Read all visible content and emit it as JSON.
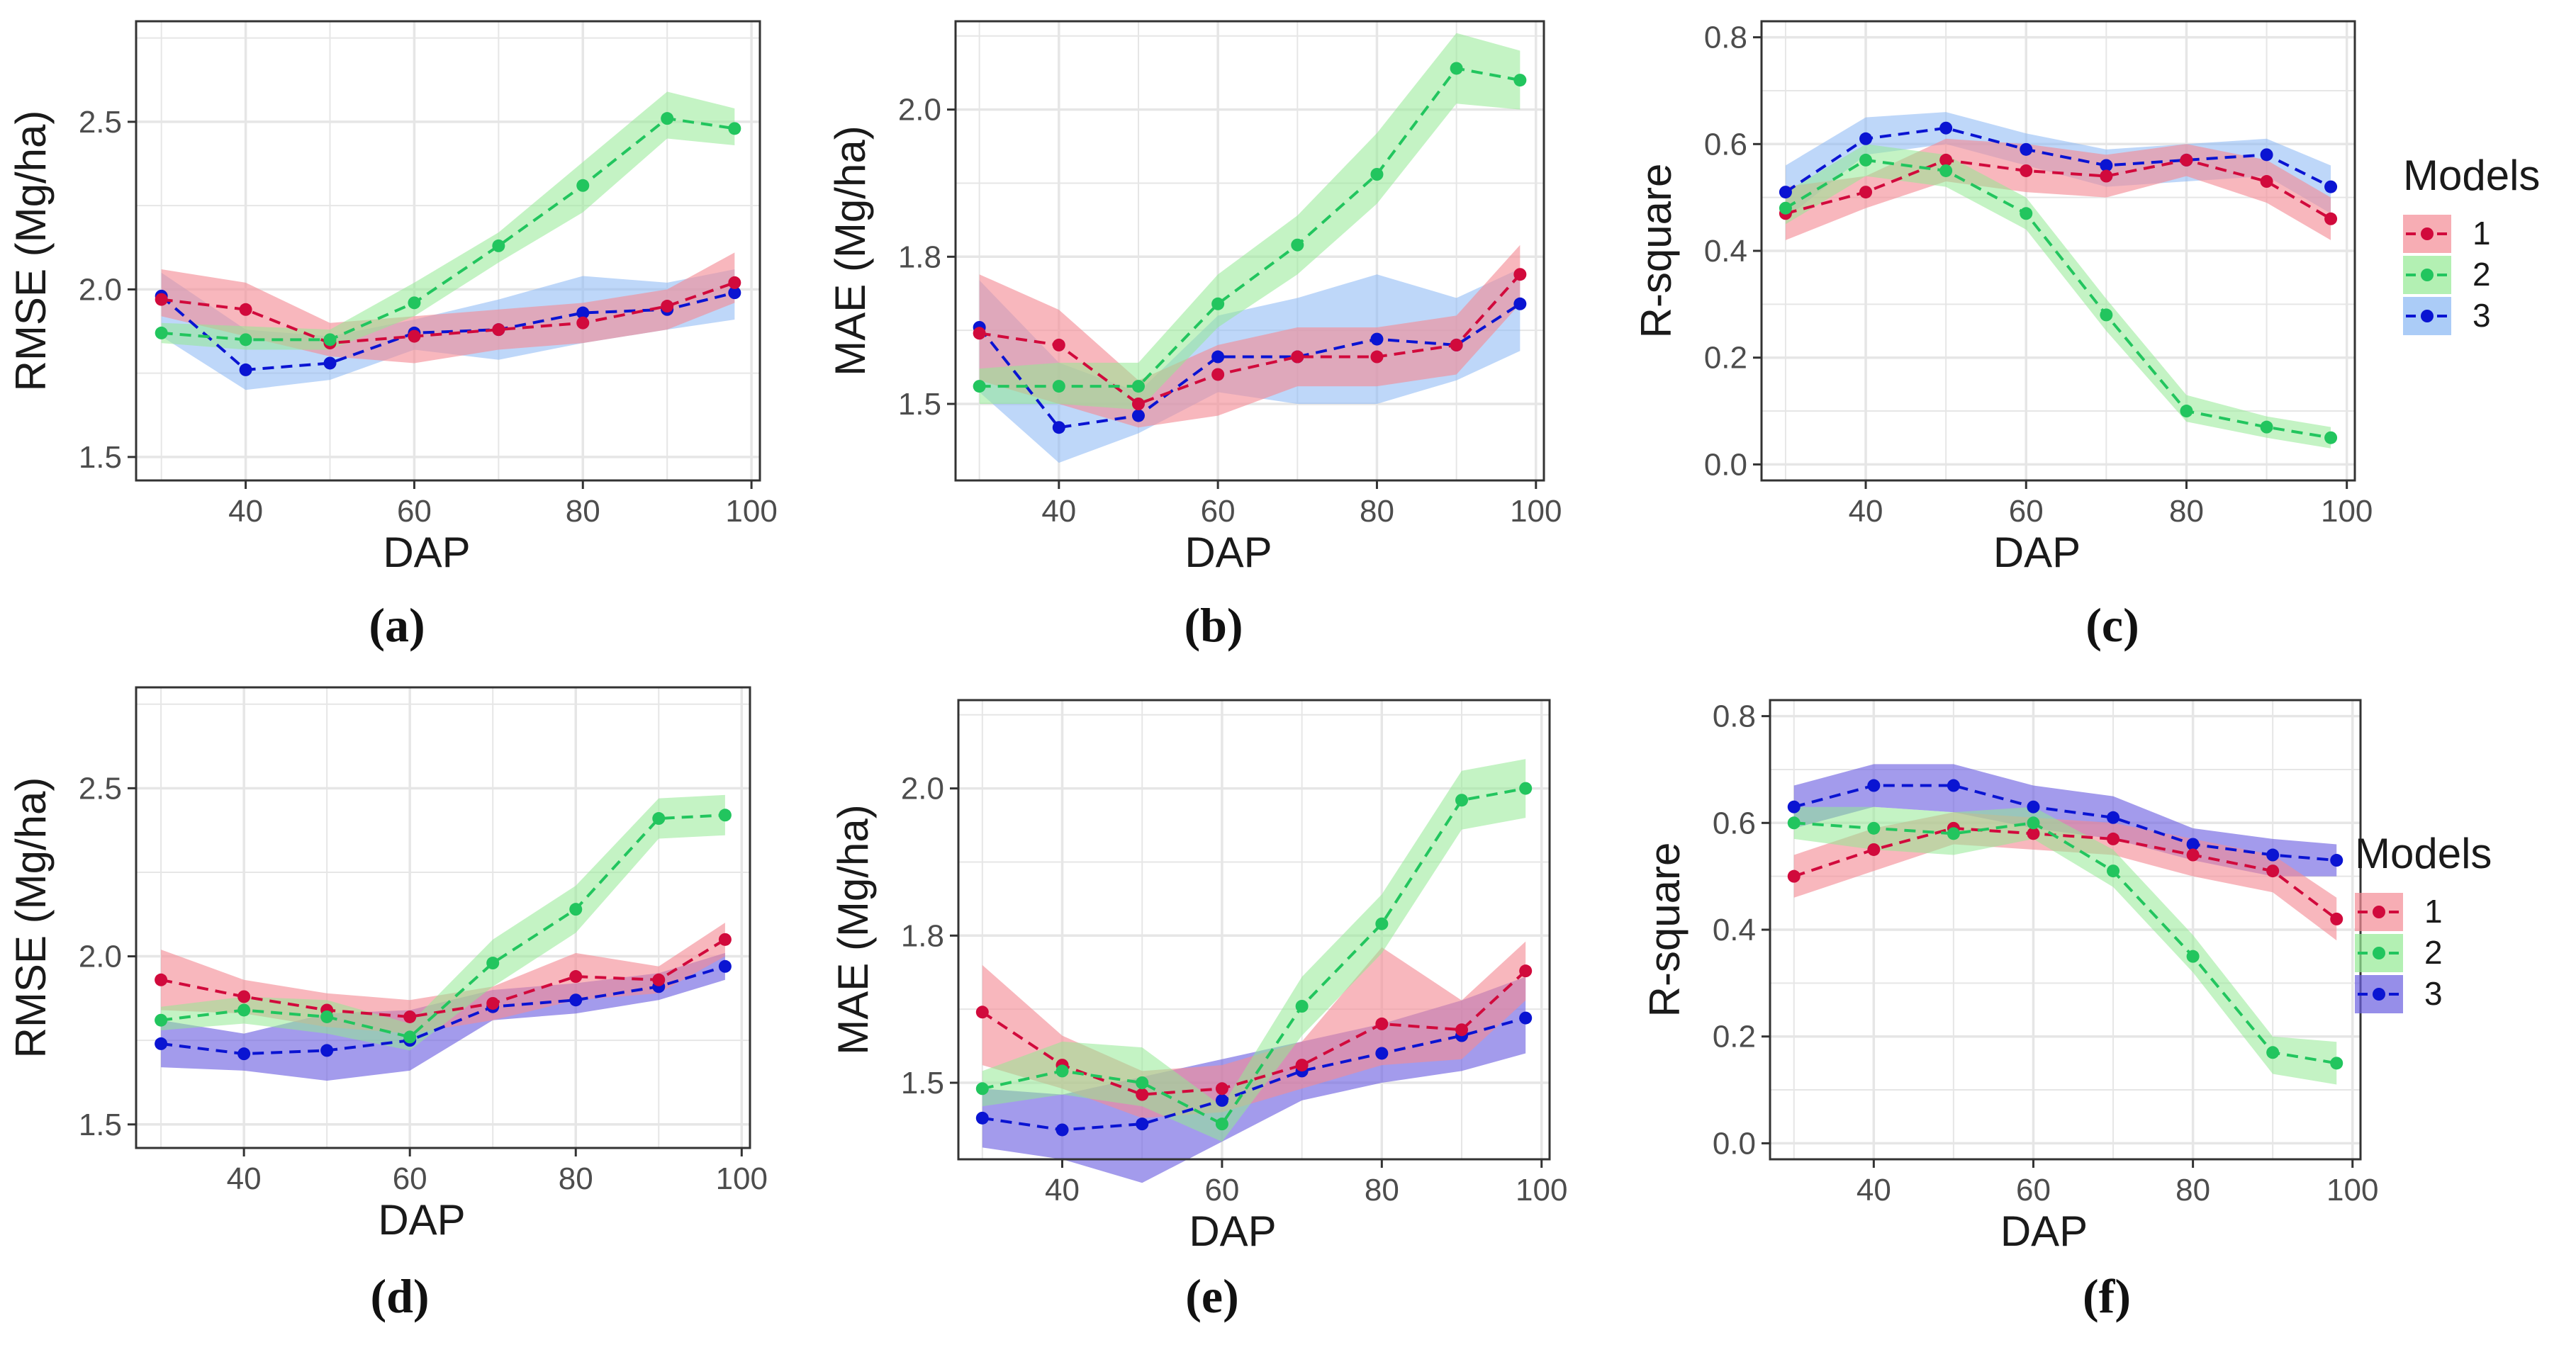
{
  "colors": {
    "model_1": "#d10a3c",
    "model_2": "#22c55e",
    "model_3": "#0a14d2",
    "band_1": "#f48a94",
    "band_2": "#93ea93",
    "band_3_top": "#88b6f4",
    "band_3_bottom": "#6a5ee0",
    "grid": "#e6e6e6",
    "axis": "#333333"
  },
  "legend": {
    "title": "Models",
    "items": [
      "1",
      "2",
      "3"
    ]
  },
  "chart_data": [
    {
      "id": "a",
      "panel_label": "(a)",
      "type": "line",
      "xlabel": "DAP",
      "ylabel": "RMSE (Mg/ha)",
      "xlim": [
        27,
        101
      ],
      "ylim": [
        1.43,
        2.8
      ],
      "xticks": [
        40,
        60,
        80,
        100
      ],
      "yticks": [
        1.5,
        2.0,
        2.5
      ],
      "xtick_labels": [
        "40",
        "60",
        "80",
        "100"
      ],
      "ytick_labels": [
        "1.5",
        "2.0",
        "2.5"
      ],
      "x": [
        30,
        40,
        50,
        60,
        70,
        80,
        90,
        98
      ],
      "series": [
        {
          "name": "1",
          "values": [
            1.97,
            1.94,
            1.84,
            1.86,
            1.88,
            1.9,
            1.95,
            2.02
          ],
          "lower": [
            1.92,
            1.86,
            1.8,
            1.78,
            1.82,
            1.84,
            1.88,
            1.96
          ],
          "upper": [
            2.06,
            2.02,
            1.9,
            1.92,
            1.94,
            1.96,
            2.0,
            2.11
          ]
        },
        {
          "name": "2",
          "values": [
            1.87,
            1.85,
            1.85,
            1.96,
            2.13,
            2.31,
            2.51,
            2.48
          ],
          "lower": [
            1.84,
            1.82,
            1.82,
            1.92,
            2.08,
            2.23,
            2.45,
            2.43
          ],
          "upper": [
            1.9,
            1.89,
            1.88,
            2.02,
            2.17,
            2.38,
            2.59,
            2.54
          ]
        },
        {
          "name": "3",
          "values": [
            1.98,
            1.76,
            1.78,
            1.87,
            1.88,
            1.93,
            1.94,
            1.99
          ],
          "lower": [
            1.86,
            1.7,
            1.73,
            1.82,
            1.79,
            1.84,
            1.88,
            1.91
          ],
          "upper": [
            2.05,
            1.88,
            1.86,
            1.91,
            1.97,
            2.04,
            2.02,
            2.06
          ]
        }
      ]
    },
    {
      "id": "b",
      "panel_label": "(b)",
      "type": "line",
      "xlabel": "DAP",
      "ylabel": "MAE (Mg/ha)",
      "xlim": [
        27,
        101
      ],
      "ylim": [
        1.37,
        2.15
      ],
      "xticks": [
        40,
        60,
        80,
        100
      ],
      "yticks": [
        1.5,
        1.75,
        2.0
      ],
      "xtick_labels": [
        "40",
        "60",
        "80",
        "100"
      ],
      "ytick_labels": [
        "1.5",
        "1.8",
        "2.0"
      ],
      "x": [
        30,
        40,
        50,
        60,
        70,
        80,
        90,
        98
      ],
      "series": [
        {
          "name": "1",
          "values": [
            1.62,
            1.6,
            1.5,
            1.55,
            1.58,
            1.58,
            1.6,
            1.72
          ],
          "lower": [
            1.54,
            1.5,
            1.46,
            1.48,
            1.53,
            1.53,
            1.55,
            1.67
          ],
          "upper": [
            1.72,
            1.66,
            1.54,
            1.6,
            1.63,
            1.63,
            1.65,
            1.77
          ]
        },
        {
          "name": "2",
          "values": [
            1.53,
            1.53,
            1.53,
            1.67,
            1.77,
            1.89,
            2.07,
            2.05
          ],
          "lower": [
            1.5,
            1.5,
            1.49,
            1.63,
            1.72,
            1.84,
            2.01,
            2.0
          ],
          "upper": [
            1.56,
            1.57,
            1.57,
            1.72,
            1.82,
            1.96,
            2.13,
            2.1
          ]
        },
        {
          "name": "3",
          "values": [
            1.63,
            1.46,
            1.48,
            1.58,
            1.58,
            1.61,
            1.6,
            1.67
          ],
          "lower": [
            1.52,
            1.4,
            1.45,
            1.52,
            1.5,
            1.5,
            1.54,
            1.59
          ],
          "upper": [
            1.71,
            1.57,
            1.52,
            1.65,
            1.68,
            1.72,
            1.68,
            1.73
          ]
        }
      ]
    },
    {
      "id": "c",
      "panel_label": "(c)",
      "type": "line",
      "xlabel": "DAP",
      "ylabel": "R-square",
      "xlim": [
        27,
        101
      ],
      "ylim": [
        -0.03,
        0.83
      ],
      "xticks": [
        40,
        60,
        80,
        100
      ],
      "yticks": [
        0.0,
        0.2,
        0.4,
        0.6,
        0.8
      ],
      "xtick_labels": [
        "40",
        "60",
        "80",
        "100"
      ],
      "ytick_labels": [
        "0.0",
        "0.2",
        "0.4",
        "0.6",
        "0.8"
      ],
      "x": [
        30,
        40,
        50,
        60,
        70,
        80,
        90,
        98
      ],
      "legend_title": "Models",
      "series": [
        {
          "name": "1",
          "values": [
            0.47,
            0.51,
            0.57,
            0.55,
            0.54,
            0.57,
            0.53,
            0.46
          ],
          "lower": [
            0.42,
            0.48,
            0.53,
            0.51,
            0.5,
            0.54,
            0.49,
            0.42
          ],
          "upper": [
            0.52,
            0.54,
            0.61,
            0.6,
            0.58,
            0.6,
            0.57,
            0.5
          ]
        },
        {
          "name": "2",
          "values": [
            0.48,
            0.57,
            0.55,
            0.47,
            0.28,
            0.1,
            0.07,
            0.05
          ],
          "lower": [
            0.45,
            0.54,
            0.52,
            0.44,
            0.25,
            0.08,
            0.05,
            0.03
          ],
          "upper": [
            0.51,
            0.6,
            0.58,
            0.5,
            0.31,
            0.13,
            0.09,
            0.07
          ]
        },
        {
          "name": "3",
          "values": [
            0.51,
            0.61,
            0.63,
            0.59,
            0.56,
            0.57,
            0.58,
            0.52
          ],
          "lower": [
            0.46,
            0.58,
            0.6,
            0.56,
            0.52,
            0.53,
            0.54,
            0.47
          ],
          "upper": [
            0.56,
            0.65,
            0.66,
            0.62,
            0.59,
            0.6,
            0.61,
            0.56
          ]
        }
      ]
    },
    {
      "id": "d",
      "panel_label": "(d)",
      "type": "line",
      "xlabel": "DAP",
      "ylabel": "RMSE (Mg/ha)",
      "xlim": [
        27,
        101
      ],
      "ylim": [
        1.43,
        2.8
      ],
      "xticks": [
        40,
        60,
        80,
        100
      ],
      "yticks": [
        1.5,
        2.0,
        2.5
      ],
      "xtick_labels": [
        "40",
        "60",
        "80",
        "100"
      ],
      "ytick_labels": [
        "1.5",
        "2.0",
        "2.5"
      ],
      "x": [
        30,
        40,
        50,
        60,
        70,
        80,
        90,
        98
      ],
      "series": [
        {
          "name": "1",
          "values": [
            1.93,
            1.88,
            1.84,
            1.82,
            1.86,
            1.94,
            1.93,
            2.05
          ],
          "lower": [
            1.84,
            1.83,
            1.79,
            1.77,
            1.81,
            1.87,
            1.89,
            2.0
          ],
          "upper": [
            2.02,
            1.93,
            1.89,
            1.87,
            1.91,
            2.01,
            1.97,
            2.1
          ]
        },
        {
          "name": "2",
          "values": [
            1.81,
            1.84,
            1.82,
            1.76,
            1.98,
            2.14,
            2.41,
            2.42
          ],
          "lower": [
            1.78,
            1.8,
            1.77,
            1.72,
            1.91,
            2.07,
            2.35,
            2.36
          ],
          "upper": [
            1.85,
            1.88,
            1.87,
            1.8,
            2.05,
            2.21,
            2.47,
            2.48
          ]
        },
        {
          "name": "3",
          "values": [
            1.74,
            1.71,
            1.72,
            1.75,
            1.85,
            1.87,
            1.91,
            1.97
          ],
          "lower": [
            1.67,
            1.66,
            1.63,
            1.66,
            1.81,
            1.83,
            1.87,
            1.93
          ],
          "upper": [
            1.81,
            1.77,
            1.83,
            1.84,
            1.9,
            1.92,
            1.95,
            2.01
          ]
        }
      ]
    },
    {
      "id": "e",
      "panel_label": "(e)",
      "type": "line",
      "xlabel": "DAP",
      "ylabel": "MAE (Mg/ha)",
      "xlim": [
        27,
        101
      ],
      "ylim": [
        1.37,
        2.15
      ],
      "xticks": [
        40,
        60,
        80,
        100
      ],
      "yticks": [
        1.5,
        1.75,
        2.0
      ],
      "xtick_labels": [
        "40",
        "60",
        "80",
        "100"
      ],
      "ytick_labels": [
        "1.5",
        "1.8",
        "2.0"
      ],
      "x": [
        30,
        40,
        50,
        60,
        70,
        80,
        90,
        98
      ],
      "series": [
        {
          "name": "1",
          "values": [
            1.62,
            1.53,
            1.48,
            1.49,
            1.53,
            1.6,
            1.59,
            1.69
          ],
          "lower": [
            1.53,
            1.49,
            1.44,
            1.45,
            1.49,
            1.53,
            1.54,
            1.64
          ],
          "upper": [
            1.7,
            1.58,
            1.52,
            1.53,
            1.57,
            1.73,
            1.64,
            1.74
          ]
        },
        {
          "name": "2",
          "values": [
            1.49,
            1.52,
            1.5,
            1.43,
            1.63,
            1.77,
            1.98,
            2.0
          ],
          "lower": [
            1.46,
            1.48,
            1.46,
            1.4,
            1.58,
            1.72,
            1.93,
            1.95
          ],
          "upper": [
            1.52,
            1.57,
            1.56,
            1.46,
            1.68,
            1.82,
            2.03,
            2.05
          ]
        },
        {
          "name": "3",
          "values": [
            1.44,
            1.42,
            1.43,
            1.47,
            1.52,
            1.55,
            1.58,
            1.61
          ],
          "lower": [
            1.39,
            1.37,
            1.33,
            1.4,
            1.47,
            1.5,
            1.52,
            1.55
          ],
          "upper": [
            1.49,
            1.48,
            1.51,
            1.54,
            1.57,
            1.6,
            1.64,
            1.68
          ]
        }
      ]
    },
    {
      "id": "f",
      "panel_label": "(f)",
      "type": "line",
      "xlabel": "DAP",
      "ylabel": "R-square",
      "xlim": [
        27,
        101
      ],
      "ylim": [
        -0.03,
        0.83
      ],
      "xticks": [
        40,
        60,
        80,
        100
      ],
      "yticks": [
        0.0,
        0.2,
        0.4,
        0.6,
        0.8
      ],
      "xtick_labels": [
        "40",
        "60",
        "80",
        "100"
      ],
      "ytick_labels": [
        "0.0",
        "0.2",
        "0.4",
        "0.6",
        "0.8"
      ],
      "x": [
        30,
        40,
        50,
        60,
        70,
        80,
        90,
        98
      ],
      "legend_title": "Models",
      "series": [
        {
          "name": "1",
          "values": [
            0.5,
            0.55,
            0.59,
            0.58,
            0.57,
            0.54,
            0.51,
            0.42
          ],
          "lower": [
            0.46,
            0.51,
            0.56,
            0.55,
            0.54,
            0.5,
            0.47,
            0.38
          ],
          "upper": [
            0.54,
            0.59,
            0.62,
            0.61,
            0.6,
            0.57,
            0.54,
            0.46
          ]
        },
        {
          "name": "2",
          "values": [
            0.6,
            0.59,
            0.58,
            0.6,
            0.51,
            0.35,
            0.17,
            0.15
          ],
          "lower": [
            0.57,
            0.55,
            0.54,
            0.57,
            0.48,
            0.32,
            0.13,
            0.11
          ],
          "upper": [
            0.63,
            0.63,
            0.62,
            0.63,
            0.55,
            0.39,
            0.2,
            0.19
          ]
        },
        {
          "name": "3",
          "values": [
            0.63,
            0.67,
            0.67,
            0.63,
            0.61,
            0.56,
            0.54,
            0.53
          ],
          "lower": [
            0.59,
            0.63,
            0.62,
            0.59,
            0.57,
            0.53,
            0.5,
            0.5
          ],
          "upper": [
            0.67,
            0.71,
            0.71,
            0.67,
            0.65,
            0.59,
            0.57,
            0.56
          ]
        }
      ]
    }
  ]
}
